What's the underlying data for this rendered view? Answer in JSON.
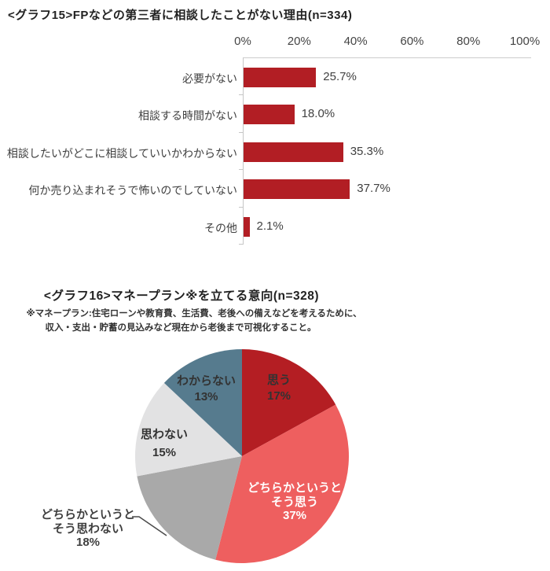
{
  "page": {
    "background": "#ffffff",
    "text_color": "#3f3f3f"
  },
  "graph15": {
    "title": "<グラフ15>FPなどの第三者に相談したことがない理由(n=334)"
  },
  "graph16": {
    "title": "<グラフ16>マネープラン※を立てる意向(n=328)",
    "footnote_line1": "※マネープラン:住宅ローンや教育費、生活費、老後への備えなどを考えるために、",
    "footnote_line2": "収入・支出・貯蓄の見込みなど現在から老後まで可視化すること。",
    "labels": {
      "omou": {
        "line1": "思う",
        "pct": "17%"
      },
      "dochiraka_omou": {
        "line1": "どちらかというと",
        "line2": "そう思う",
        "pct": "37%"
      },
      "dochiraka_omowanai": {
        "line1": "どちらかというと",
        "line2": "そう思わない",
        "pct": "18%"
      },
      "omowanai": {
        "line1": "思わない",
        "pct": "15%"
      },
      "wakaranai": {
        "line1": "わからない",
        "pct": "13%"
      }
    }
  },
  "chart_data": [
    {
      "type": "bar",
      "orientation": "horizontal",
      "title": "<グラフ15>FPなどの第三者に相談したことがない理由(n=334)",
      "n": 334,
      "categories": [
        "必要がない",
        "相談する時間がない",
        "相談したいがどこに相談していいかわからない",
        "何か売り込まれそうで怖いのでしていない",
        "その他"
      ],
      "values": [
        25.7,
        18.0,
        35.3,
        37.7,
        2.1
      ],
      "value_labels": [
        "25.7%",
        "18.0%",
        "35.3%",
        "37.7%",
        "2.1%"
      ],
      "x_ticks": [
        "0%",
        "20%",
        "40%",
        "60%",
        "80%",
        "100%"
      ],
      "xlim": [
        0,
        100
      ],
      "grid": false,
      "legend": "none",
      "bar_color": "#b21e24",
      "axis_color": "#c6c6c6"
    },
    {
      "type": "pie",
      "title": "<グラフ16>マネープラン※を立てる意向(n=328)",
      "n": 328,
      "footnote": [
        "※マネープラン:住宅ローンや教育費、生活費、老後への備えなどを考えるために、",
        "収入・支出・貯蓄の見込みなど現在から老後まで可視化すること。"
      ],
      "labels": [
        "思う",
        "どちらかというとそう思う",
        "どちらかというとそう思わない",
        "思わない",
        "わからない"
      ],
      "values": [
        17,
        37,
        18,
        15,
        13
      ],
      "colors": [
        "#b41e23",
        "#ee5f5f",
        "#a9a9a9",
        "#e2e2e3",
        "#567b8e"
      ],
      "label_text_colors": [
        "#333333",
        "#ffffff",
        "#3f3f3f",
        "#333333",
        "#333333"
      ],
      "start_angle": "top",
      "direction": "clockwise",
      "legend": "none"
    }
  ]
}
